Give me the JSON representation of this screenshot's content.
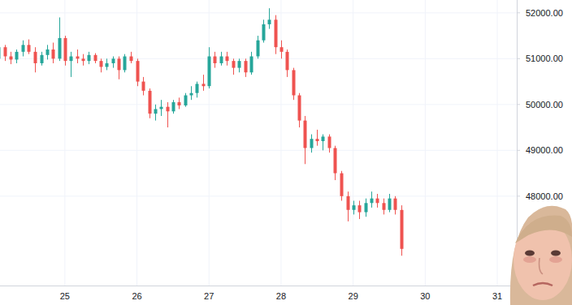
{
  "chart_data": {
    "type": "candlestick",
    "x": [
      24.08,
      24.17,
      24.25,
      24.33,
      24.42,
      24.5,
      24.58,
      24.67,
      24.75,
      24.83,
      24.92,
      25,
      25.08,
      25.17,
      25.25,
      25.33,
      25.42,
      25.5,
      25.58,
      25.67,
      25.75,
      25.83,
      25.92,
      26,
      26.08,
      26.17,
      26.25,
      26.33,
      26.42,
      26.5,
      26.58,
      26.67,
      26.75,
      26.83,
      26.92,
      27,
      27.08,
      27.17,
      27.25,
      27.33,
      27.42,
      27.5,
      27.58,
      27.67,
      27.75,
      27.83,
      27.92,
      28,
      28.08,
      28.17,
      28.25,
      28.33,
      28.42,
      28.5,
      28.58,
      28.67,
      28.75,
      28.83,
      28.92,
      29,
      29.08,
      29.17,
      29.25,
      29.33,
      29.42,
      29.5,
      29.58,
      29.67
    ],
    "open": [
      51000,
      51250,
      51050,
      50980,
      51150,
      51300,
      51150,
      50900,
      51080,
      51200,
      51000,
      51450,
      50950,
      51050,
      51000,
      50950,
      51080,
      50950,
      50820,
      50900,
      51000,
      50750,
      51050,
      50950,
      50500,
      50300,
      49800,
      49900,
      49950,
      49850,
      50050,
      49980,
      50200,
      50250,
      50450,
      50400,
      51050,
      50900,
      51050,
      50950,
      50800,
      50950,
      50700,
      51050,
      51400,
      51750,
      51850,
      51250,
      51150,
      50750,
      50200,
      49650,
      49050,
      49250,
      49200,
      49300,
      49050,
      48500,
      48000,
      47700,
      47800,
      47650,
      47850,
      47950,
      47850,
      47700,
      47950,
      47700
    ],
    "high": [
      51480,
      51300,
      51150,
      51200,
      51400,
      51420,
      51250,
      51150,
      51300,
      51350,
      51900,
      51500,
      51150,
      51200,
      51100,
      51150,
      51120,
      51000,
      51000,
      51050,
      51050,
      51100,
      51150,
      51000,
      50600,
      50350,
      50000,
      50100,
      50050,
      50100,
      50150,
      50250,
      50400,
      50500,
      50650,
      51250,
      51150,
      51150,
      51150,
      51000,
      51000,
      51000,
      51150,
      51500,
      51850,
      52100,
      51950,
      51400,
      51200,
      50800,
      50250,
      49750,
      49350,
      49450,
      49350,
      49350,
      49100,
      48550,
      48100,
      47900,
      47900,
      47950,
      48100,
      48050,
      47950,
      48050,
      48000,
      47800
    ],
    "low": [
      50900,
      50950,
      50880,
      50900,
      51050,
      51100,
      50700,
      50850,
      50980,
      50900,
      50950,
      50850,
      50600,
      50900,
      50850,
      50880,
      50900,
      50700,
      50750,
      50800,
      50550,
      50700,
      50900,
      50400,
      50200,
      49700,
      49650,
      49750,
      49500,
      49800,
      49900,
      49950,
      50100,
      50150,
      50300,
      50350,
      50800,
      50850,
      50850,
      50650,
      50700,
      50600,
      50650,
      51000,
      51350,
      51650,
      51100,
      51000,
      50600,
      50100,
      49500,
      48700,
      48950,
      49100,
      49000,
      48950,
      48350,
      47900,
      47450,
      47600,
      47500,
      47550,
      47750,
      47750,
      47600,
      47650,
      47600,
      46700
    ],
    "close": [
      51250,
      51050,
      50980,
      51150,
      51300,
      51150,
      50900,
      51080,
      51200,
      51000,
      51450,
      50950,
      51050,
      51000,
      50950,
      51080,
      50950,
      50820,
      50900,
      51000,
      50750,
      51050,
      50950,
      50500,
      50300,
      49800,
      49900,
      49950,
      49850,
      50050,
      49980,
      50200,
      50250,
      50450,
      50400,
      51050,
      50900,
      51050,
      50950,
      50800,
      50950,
      50700,
      51050,
      51400,
      51750,
      51850,
      51250,
      51150,
      50750,
      50200,
      49650,
      49050,
      49250,
      49200,
      49300,
      49050,
      48500,
      48000,
      47700,
      47800,
      47650,
      47850,
      47950,
      47850,
      47700,
      47950,
      47700,
      46850
    ],
    "color": {
      "up": "#26a69a",
      "down": "#ef5350"
    },
    "xlim": [
      24.1,
      31.27
    ],
    "xticks": [
      25,
      26,
      27,
      28,
      29,
      30,
      31
    ],
    "ylim": [
      46050,
      52280
    ],
    "yticks": [
      {
        "value": 48000,
        "label": "48000.00"
      },
      {
        "value": 49000,
        "label": "49000.00"
      },
      {
        "value": 50000,
        "label": "50000.00"
      },
      {
        "value": 51000,
        "label": "51000.00"
      },
      {
        "value": 52000,
        "label": "52000.00"
      }
    ],
    "grid": true
  }
}
